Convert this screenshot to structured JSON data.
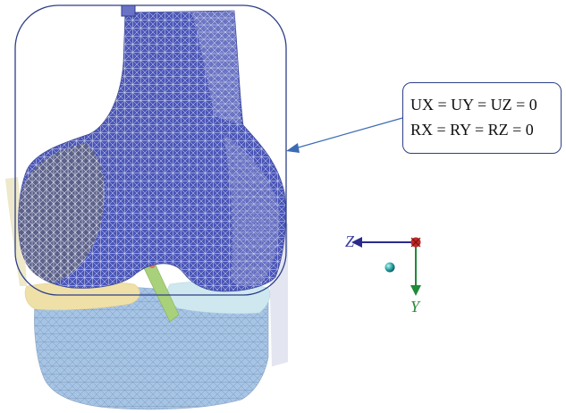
{
  "constraint_box": {
    "line1": "UX = UY = UZ = 0",
    "line2": "RX = RY = RZ = 0"
  },
  "axes": {
    "z_label": "Z",
    "y_label": "Y",
    "z_color": "#2a2a8c",
    "y_color": "#1f8a3a",
    "x_origin_color": "#c0282a",
    "z_label_color": "#3a3f9e",
    "y_label_color": "#2a8a3a"
  },
  "colors": {
    "femur_mesh": "#4f5bbf",
    "tibia_mesh": "#a8c8e8",
    "meniscus_lateral": "#efe0a8",
    "meniscus_medial": "#cfe8f0",
    "ligament": "#a9d07a",
    "frame_stroke": "#2d3f88"
  },
  "icons": {
    "fixed_support": "blue-square-marker",
    "origin": "red-x-origin-dot",
    "node": "teal-sphere"
  }
}
